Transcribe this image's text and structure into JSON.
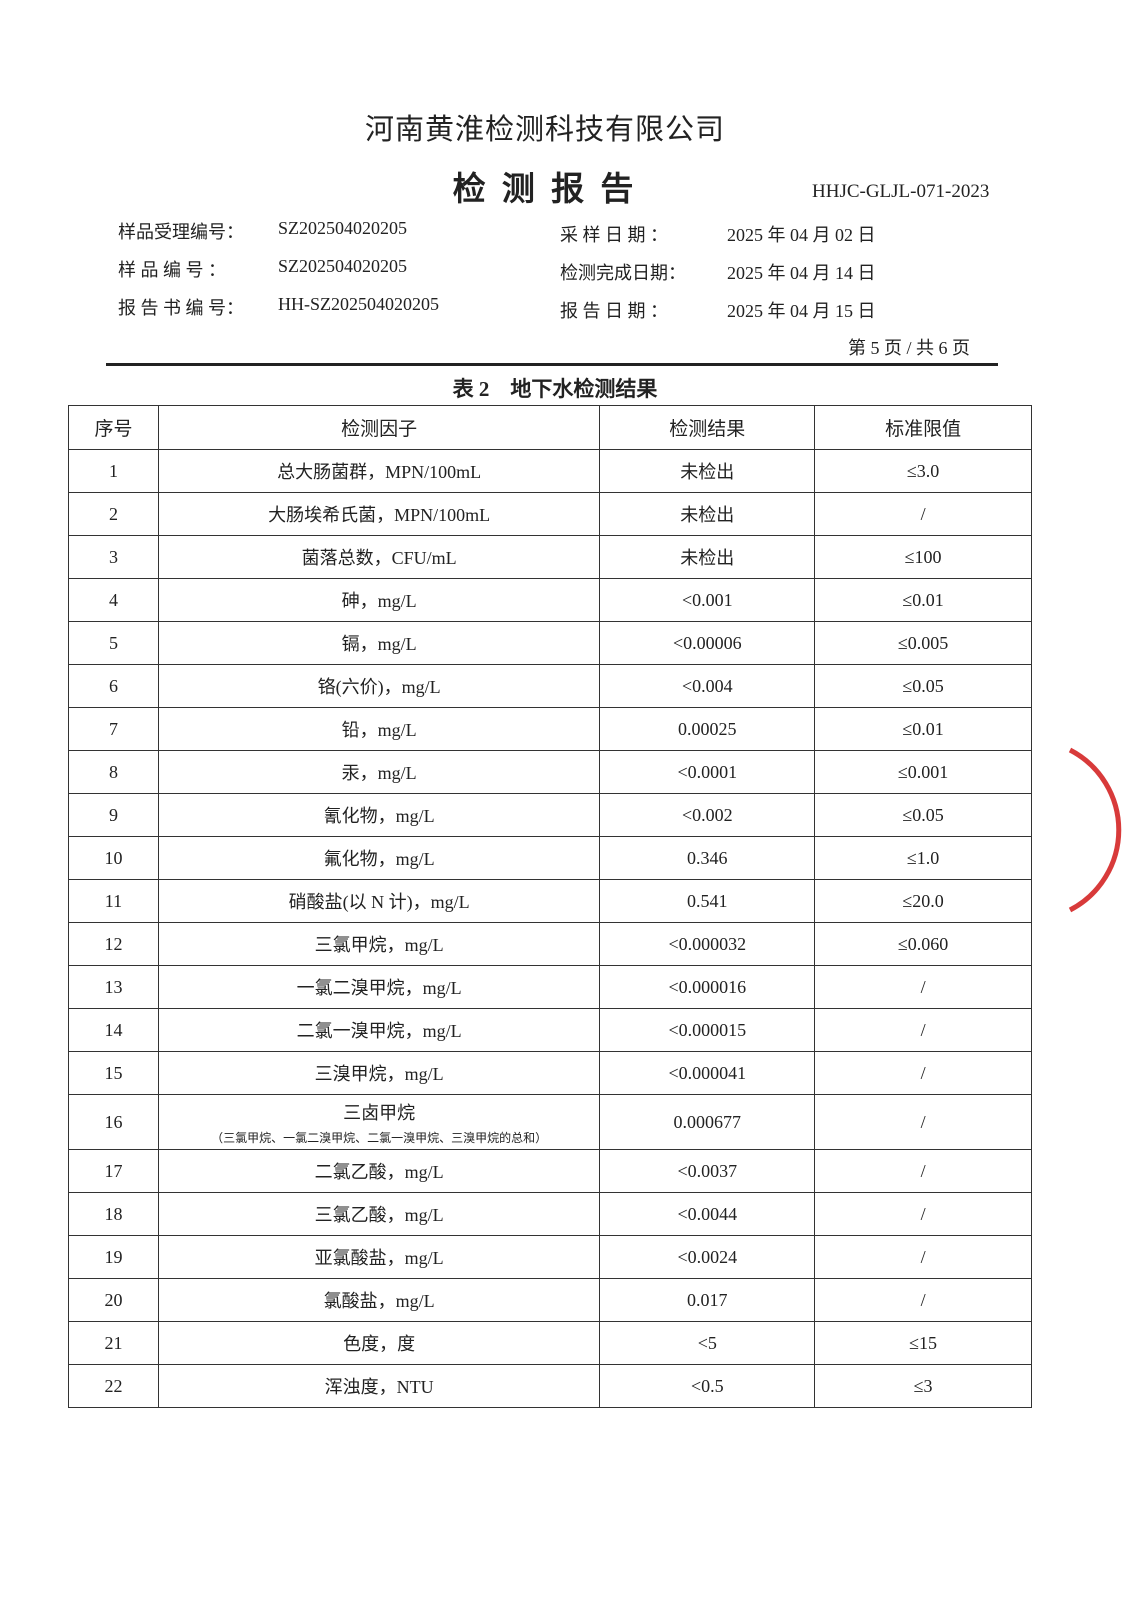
{
  "header": {
    "company": "河南黄淮检测科技有限公司",
    "title": "检 测 报 告",
    "doc_code": "HHJC-GLJL-071-2023"
  },
  "info_left": [
    {
      "label": "样品受理编号：",
      "value": "SZ202504020205"
    },
    {
      "label": "样 品 编 号 ：",
      "value": "SZ202504020205"
    },
    {
      "label": "报 告 书 编 号：",
      "value": "HH-SZ202504020205"
    }
  ],
  "info_right": [
    {
      "label": "采 样 日 期 ：",
      "value": "2025 年 04 月 02 日"
    },
    {
      "label": "检测完成日期：",
      "value": "2025 年 04 月 14 日"
    },
    {
      "label": "报 告 日 期 ：",
      "value": "2025 年 04 月 15 日"
    }
  ],
  "page_no": "第 5 页 / 共 6 页",
  "table": {
    "caption": "表 2　地下水检测结果",
    "headers": [
      "序号",
      "检测因子",
      "检测结果",
      "标准限值"
    ],
    "rows": [
      [
        "1",
        "总大肠菌群，MPN/100mL",
        "未检出",
        "≤3.0"
      ],
      [
        "2",
        "大肠埃希氏菌，MPN/100mL",
        "未检出",
        "/"
      ],
      [
        "3",
        "菌落总数，CFU/mL",
        "未检出",
        "≤100"
      ],
      [
        "4",
        "砷，mg/L",
        "<0.001",
        "≤0.01"
      ],
      [
        "5",
        "镉，mg/L",
        "<0.00006",
        "≤0.005"
      ],
      [
        "6",
        "铬(六价)，mg/L",
        "<0.004",
        "≤0.05"
      ],
      [
        "7",
        "铅，mg/L",
        "0.00025",
        "≤0.01"
      ],
      [
        "8",
        "汞，mg/L",
        "<0.0001",
        "≤0.001"
      ],
      [
        "9",
        "氰化物，mg/L",
        "<0.002",
        "≤0.05"
      ],
      [
        "10",
        "氟化物，mg/L",
        "0.346",
        "≤1.0"
      ],
      [
        "11",
        "硝酸盐(以 N 计)，mg/L",
        "0.541",
        "≤20.0"
      ],
      [
        "12",
        "三氯甲烷，mg/L",
        "<0.000032",
        "≤0.060"
      ],
      [
        "13",
        "一氯二溴甲烷，mg/L",
        "<0.000016",
        "/"
      ],
      [
        "14",
        "二氯一溴甲烷，mg/L",
        "<0.000015",
        "/"
      ],
      [
        "15",
        "三溴甲烷，mg/L",
        "<0.000041",
        "/"
      ],
      [
        "16",
        [
          "三卤甲烷",
          "（三氯甲烷、一氯二溴甲烷、二氯一溴甲烷、三溴甲烷的总和）"
        ],
        "0.000677",
        "/"
      ],
      [
        "17",
        "二氯乙酸，mg/L",
        "<0.0037",
        "/"
      ],
      [
        "18",
        "三氯乙酸，mg/L",
        "<0.0044",
        "/"
      ],
      [
        "19",
        "亚氯酸盐，mg/L",
        "<0.0024",
        "/"
      ],
      [
        "20",
        "氯酸盐，mg/L",
        "0.017",
        "/"
      ],
      [
        "21",
        "色度，度",
        "<5",
        "≤15"
      ],
      [
        "22",
        "浑浊度，NTU",
        "<0.5",
        "≤3"
      ]
    ]
  }
}
